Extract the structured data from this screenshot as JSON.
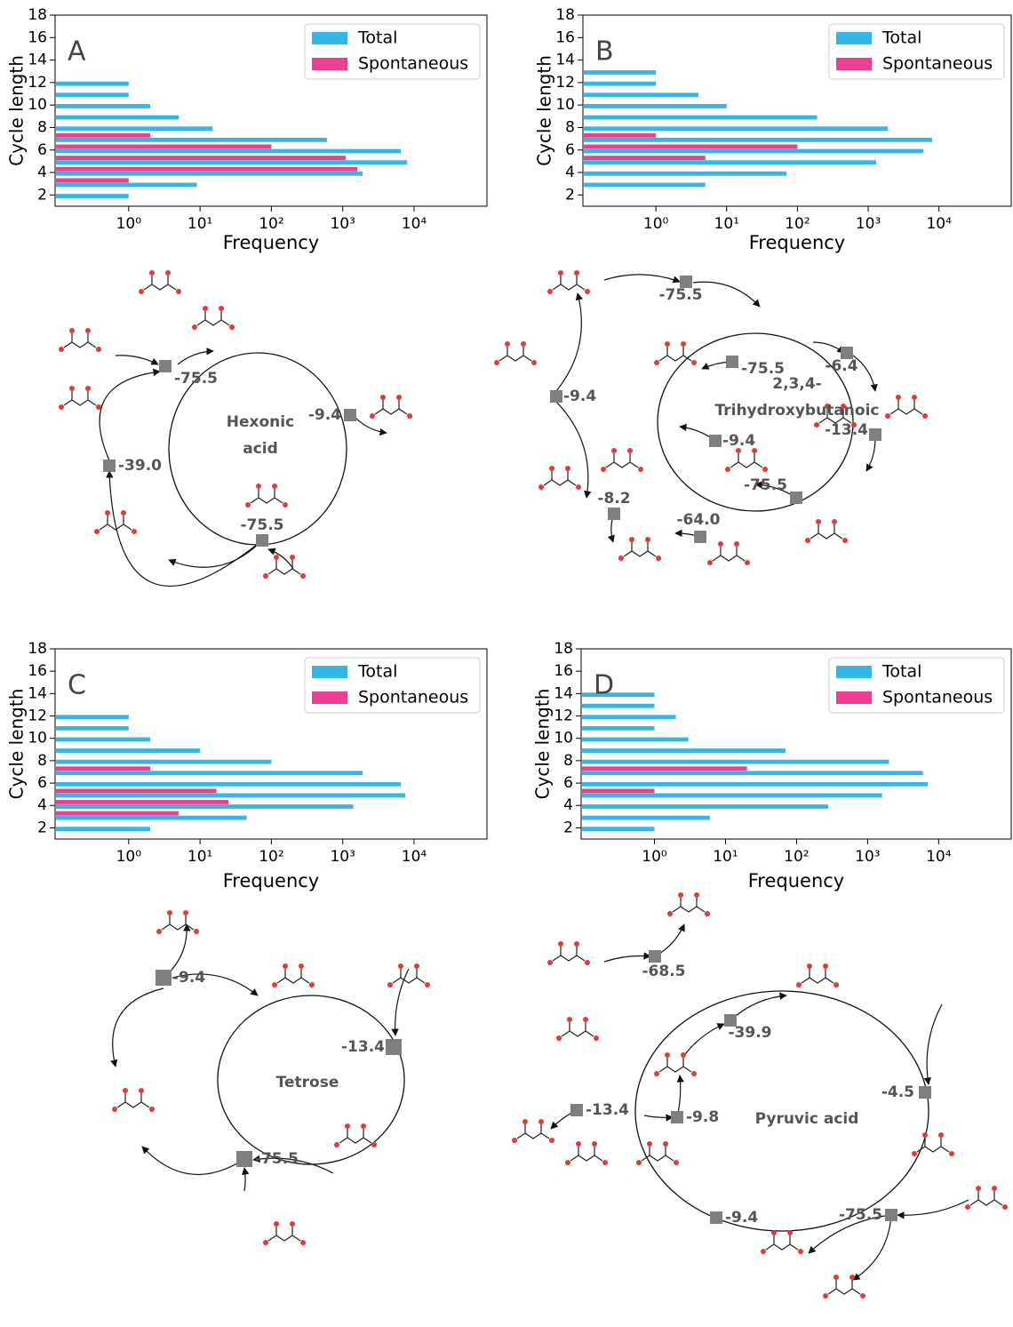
{
  "chart_data": [
    {
      "type": "bar",
      "orientation": "horizontal",
      "panel_label": "A",
      "xlabel": "Frequency",
      "ylabel": "Cycle length",
      "y": [
        2,
        3,
        4,
        5,
        6,
        7,
        8,
        9,
        10,
        11,
        12
      ],
      "series": [
        {
          "name": "Total",
          "color": "#35b6e9",
          "values": [
            1,
            9,
            1900,
            8000,
            6500,
            600,
            15,
            5,
            2,
            1,
            1
          ]
        },
        {
          "name": "Spontaneous",
          "color": "#ec3f92",
          "values": [
            null,
            1,
            1600,
            1100,
            100,
            2,
            null,
            null,
            null,
            null,
            null
          ]
        }
      ],
      "xscale": "log",
      "xlim": [
        0.093,
        105000
      ],
      "xticks": [
        {
          "value": 1,
          "label": "10⁰"
        },
        {
          "value": 10,
          "label": "10¹"
        },
        {
          "value": 100,
          "label": "10²"
        },
        {
          "value": 1000,
          "label": "10³"
        },
        {
          "value": 10000,
          "label": "10⁴"
        }
      ],
      "ylim": [
        1,
        18
      ],
      "yticks": [
        2,
        4,
        6,
        8,
        10,
        12,
        14,
        16,
        18
      ],
      "legend": "upper right"
    },
    {
      "type": "bar",
      "orientation": "horizontal",
      "panel_label": "B",
      "xlabel": "Frequency",
      "ylabel": "Cycle length",
      "y": [
        3,
        4,
        5,
        6,
        7,
        8,
        9,
        10,
        11,
        12,
        13
      ],
      "series": [
        {
          "name": "Total",
          "color": "#35b6e9",
          "values": [
            5,
            70,
            1300,
            6000,
            8000,
            1900,
            190,
            10,
            4,
            1,
            1
          ]
        },
        {
          "name": "Spontaneous",
          "color": "#ec3f92",
          "values": [
            null,
            null,
            5,
            100,
            1,
            null,
            null,
            null,
            null,
            null,
            null
          ]
        }
      ],
      "xscale": "log",
      "xlim": [
        0.093,
        105000
      ],
      "xticks": [
        {
          "value": 1,
          "label": "10⁰"
        },
        {
          "value": 10,
          "label": "10¹"
        },
        {
          "value": 100,
          "label": "10²"
        },
        {
          "value": 1000,
          "label": "10³"
        },
        {
          "value": 10000,
          "label": "10⁴"
        }
      ],
      "ylim": [
        1,
        18
      ],
      "yticks": [
        2,
        4,
        6,
        8,
        10,
        12,
        14,
        16,
        18
      ],
      "legend": "upper right"
    },
    {
      "type": "bar",
      "orientation": "horizontal",
      "panel_label": "C",
      "xlabel": "Frequency",
      "ylabel": "Cycle length",
      "y": [
        2,
        3,
        4,
        5,
        6,
        7,
        8,
        9,
        10,
        11,
        12
      ],
      "series": [
        {
          "name": "Total",
          "color": "#35b6e9",
          "values": [
            2,
            45,
            1400,
            7500,
            6500,
            1900,
            100,
            10,
            2,
            1,
            1
          ]
        },
        {
          "name": "Spontaneous",
          "color": "#ec3f92",
          "values": [
            null,
            5,
            25,
            17,
            null,
            2,
            null,
            null,
            null,
            null,
            null
          ]
        }
      ],
      "xscale": "log",
      "xlim": [
        0.093,
        105000
      ],
      "xticks": [
        {
          "value": 1,
          "label": "10⁰"
        },
        {
          "value": 10,
          "label": "10¹"
        },
        {
          "value": 100,
          "label": "10²"
        },
        {
          "value": 1000,
          "label": "10³"
        },
        {
          "value": 10000,
          "label": "10⁴"
        }
      ],
      "ylim": [
        1,
        18
      ],
      "yticks": [
        2,
        4,
        6,
        8,
        10,
        12,
        14,
        16,
        18
      ],
      "legend": "upper right"
    },
    {
      "type": "bar",
      "orientation": "horizontal",
      "panel_label": "D",
      "xlabel": "Frequency",
      "ylabel": "Cycle length",
      "y": [
        2,
        3,
        4,
        5,
        6,
        7,
        8,
        9,
        10,
        11,
        12,
        13,
        14
      ],
      "series": [
        {
          "name": "Total",
          "color": "#35b6e9",
          "values": [
            1,
            6,
            280,
            1600,
            7000,
            6000,
            2000,
            70,
            3,
            1,
            2,
            1,
            1
          ]
        },
        {
          "name": "Spontaneous",
          "color": "#ec3f92",
          "values": [
            null,
            null,
            null,
            1,
            null,
            20,
            null,
            null,
            null,
            null,
            null,
            null,
            null
          ]
        }
      ],
      "xscale": "log",
      "xlim": [
        0.093,
        105000
      ],
      "xticks": [
        {
          "value": 1,
          "label": "10⁰"
        },
        {
          "value": 10,
          "label": "10¹"
        },
        {
          "value": 100,
          "label": "10²"
        },
        {
          "value": 1000,
          "label": "10³"
        },
        {
          "value": 10000,
          "label": "10⁴"
        }
      ],
      "ylim": [
        1,
        18
      ],
      "yticks": [
        2,
        4,
        6,
        8,
        10,
        12,
        14,
        16,
        18
      ],
      "legend": "upper right"
    }
  ],
  "diagrams": [
    {
      "center": [
        "Hexonic",
        "acid"
      ],
      "nodes": [
        "-75.5",
        "-9.4",
        "-75.5",
        "-39.0"
      ]
    },
    {
      "center": [
        "2,3,4-",
        "Trihydroxybutanoic"
      ],
      "nodes": [
        "-75.5",
        "-75.5",
        "-6.4",
        "-9.4",
        "-13.4",
        "-9.4",
        "-75.5",
        "-8.2",
        "-64.0"
      ]
    },
    {
      "center": [
        "Tetrose"
      ],
      "nodes": [
        "-9.4",
        "-13.4",
        "-75.5"
      ]
    },
    {
      "center": [
        "Pyruvic acid"
      ],
      "nodes": [
        "-68.5",
        "-39.9",
        "-4.5",
        "-13.4",
        "-9.8",
        "-9.4",
        "-75.5"
      ]
    }
  ]
}
